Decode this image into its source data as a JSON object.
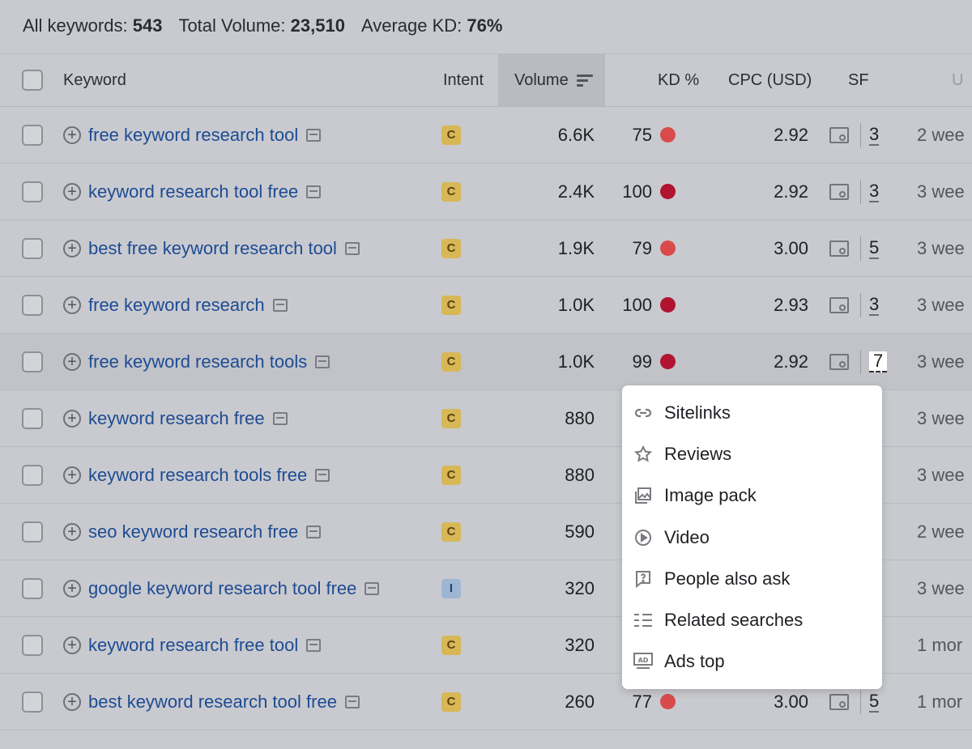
{
  "summary": {
    "all_keywords_label": "All keywords:",
    "all_keywords_value": "543",
    "total_volume_label": "Total Volume:",
    "total_volume_value": "23,510",
    "average_kd_label": "Average KD:",
    "average_kd_value": "76%"
  },
  "columns": {
    "keyword": "Keyword",
    "intent": "Intent",
    "volume": "Volume",
    "kd": "KD %",
    "cpc": "CPC (USD)",
    "sf": "SF",
    "updated": "U"
  },
  "rows": [
    {
      "keyword": "free keyword research tool",
      "intent": "C",
      "volume": "6.6K",
      "kd": "75",
      "kd_color": "#d94b4b",
      "cpc": "2.92",
      "sf": "3",
      "updated": "2 wee"
    },
    {
      "keyword": "keyword research tool free",
      "intent": "C",
      "volume": "2.4K",
      "kd": "100",
      "kd_color": "#b01430",
      "cpc": "2.92",
      "sf": "3",
      "updated": "3 wee"
    },
    {
      "keyword": "best free keyword research tool",
      "intent": "C",
      "volume": "1.9K",
      "kd": "79",
      "kd_color": "#d94b4b",
      "cpc": "3.00",
      "sf": "5",
      "updated": "3 wee"
    },
    {
      "keyword": "free keyword research",
      "intent": "C",
      "volume": "1.0K",
      "kd": "100",
      "kd_color": "#b01430",
      "cpc": "2.93",
      "sf": "3",
      "updated": "3 wee"
    },
    {
      "keyword": "free keyword research tools",
      "intent": "C",
      "volume": "1.0K",
      "kd": "99",
      "kd_color": "#b01430",
      "cpc": "2.92",
      "sf": "7",
      "updated": "3 wee"
    },
    {
      "keyword": "keyword research free",
      "intent": "C",
      "volume": "880",
      "updated": "3 wee"
    },
    {
      "keyword": "keyword research tools free",
      "intent": "C",
      "volume": "880",
      "updated": "3 wee"
    },
    {
      "keyword": "seo keyword research free",
      "intent": "C",
      "volume": "590",
      "updated": "2 wee"
    },
    {
      "keyword": "google keyword research tool free",
      "intent": "I",
      "volume": "320",
      "updated": "3 wee"
    },
    {
      "keyword": "keyword research free tool",
      "intent": "C",
      "volume": "320",
      "updated": "1 mor"
    },
    {
      "keyword": "best keyword research tool free",
      "intent": "C",
      "volume": "260",
      "kd": "77",
      "kd_color": "#d94b4b",
      "cpc": "3.00",
      "sf": "5",
      "updated": "1 mor"
    }
  ],
  "sf_dropdown": {
    "items": [
      {
        "label": "Sitelinks",
        "icon": "link-icon"
      },
      {
        "label": "Reviews",
        "icon": "star-icon"
      },
      {
        "label": "Image pack",
        "icon": "image-icon"
      },
      {
        "label": "Video",
        "icon": "play-icon"
      },
      {
        "label": "People also ask",
        "icon": "question-icon"
      },
      {
        "label": "Related searches",
        "icon": "list-icon"
      },
      {
        "label": "Ads top",
        "icon": "ad-icon"
      }
    ]
  }
}
